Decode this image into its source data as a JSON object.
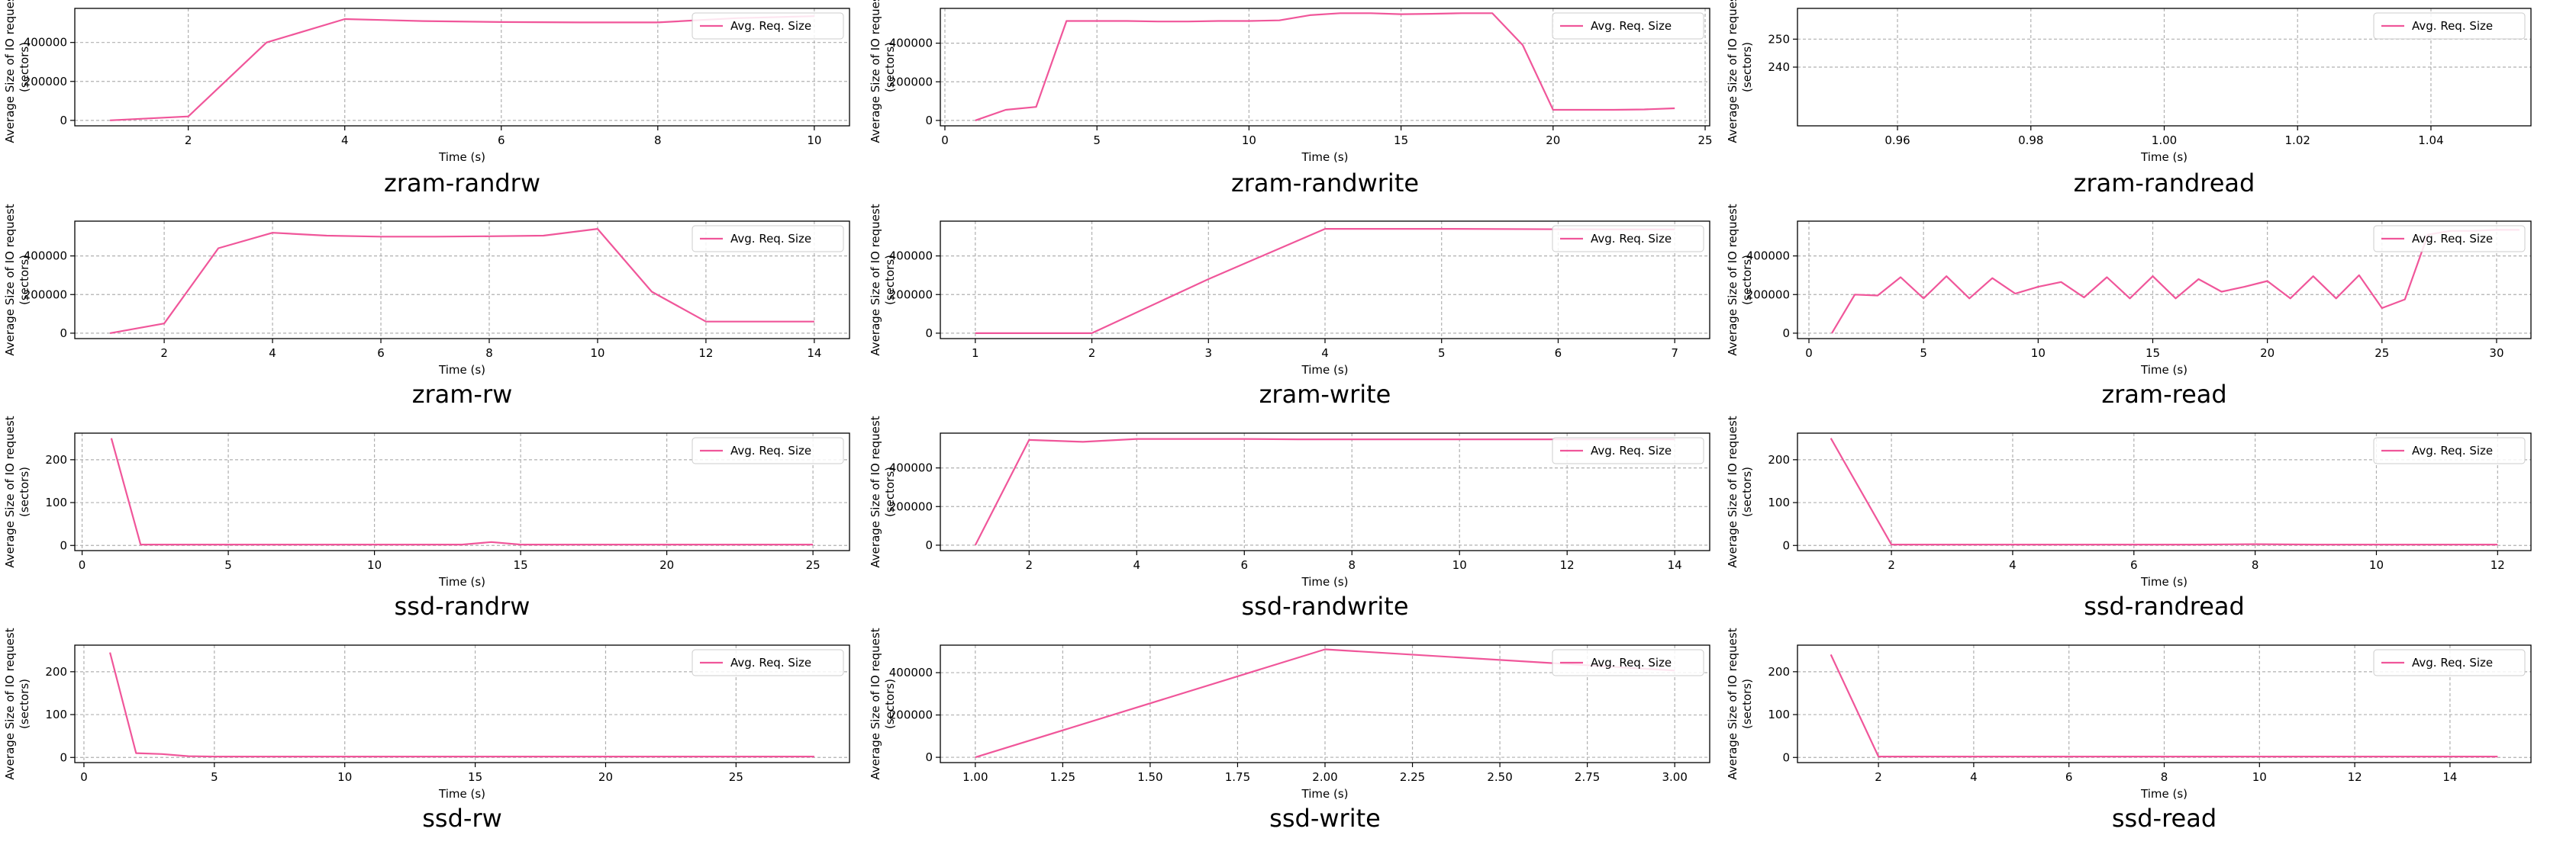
{
  "legend_label": "Avg. Req. Size",
  "common_ylabel_line1": "Average Size of IO request",
  "common_ylabel_line2": "(sectors)",
  "common_xlabel": "Time (s)",
  "colors": {
    "series": "#f0569a",
    "grid": "#b0b0b0",
    "axis": "#000000"
  },
  "chart_data": [
    {
      "type": "line",
      "title": "zram-randrw",
      "xlabel": "Time (s)",
      "ylabel": "Average Size of IO request (sectors)",
      "xlim": [
        0.55,
        10.45
      ],
      "ylim": [
        -28000,
        575000
      ],
      "xticks": [
        2,
        4,
        6,
        8,
        10
      ],
      "yticks": [
        0,
        200000,
        400000
      ],
      "grid": true,
      "legend": "top-right",
      "series": [
        {
          "name": "Avg. Req. Size",
          "x": [
            1,
            2,
            3,
            4,
            5,
            6,
            7,
            8,
            9,
            10
          ],
          "y": [
            0,
            20000,
            400000,
            520000,
            510000,
            505000,
            503000,
            503000,
            525000,
            535000
          ]
        }
      ]
    },
    {
      "type": "line",
      "title": "zram-randwrite",
      "xlabel": "Time (s)",
      "ylabel": "Average Size of IO request (sectors)",
      "xlim": [
        -0.15,
        25.15
      ],
      "ylim": [
        -28000,
        580000
      ],
      "xticks": [
        0,
        5,
        10,
        15,
        20,
        25
      ],
      "yticks": [
        0,
        200000,
        400000
      ],
      "grid": true,
      "legend": "top-right",
      "series": [
        {
          "name": "Avg. Req. Size",
          "x": [
            1,
            2,
            3,
            4,
            5,
            6,
            7,
            8,
            9,
            10,
            11,
            12,
            13,
            14,
            15,
            16,
            17,
            18,
            19,
            20,
            21,
            22,
            23,
            24
          ],
          "y": [
            0,
            55000,
            70000,
            515000,
            515000,
            515000,
            512000,
            512000,
            515000,
            515000,
            518000,
            545000,
            555000,
            555000,
            550000,
            552000,
            555000,
            555000,
            390000,
            55000,
            55000,
            55000,
            57000,
            63000
          ]
        }
      ]
    },
    {
      "type": "line",
      "title": "zram-randread",
      "xlabel": "Time (s)",
      "ylabel": "Average Size of IO request (sectors)",
      "xlim": [
        0.945,
        1.055
      ],
      "ylim": [
        219,
        261
      ],
      "xticks": [
        0.96,
        0.98,
        1.0,
        1.02,
        1.04
      ],
      "xtick_labels": [
        "0.96",
        "0.98",
        "1.00",
        "1.02",
        "1.04"
      ],
      "yticks": [
        240,
        250
      ],
      "grid": true,
      "legend": "top-right",
      "series": [
        {
          "name": "Avg. Req. Size",
          "x": [],
          "y": []
        }
      ]
    },
    {
      "type": "line",
      "title": "zram-rw",
      "xlabel": "Time (s)",
      "ylabel": "Average Size of IO request (sectors)",
      "xlim": [
        0.35,
        14.65
      ],
      "ylim": [
        -28000,
        580000
      ],
      "xticks": [
        2,
        4,
        6,
        8,
        10,
        12,
        14
      ],
      "yticks": [
        0,
        200000,
        400000
      ],
      "grid": true,
      "legend": "top-right",
      "series": [
        {
          "name": "Avg. Req. Size",
          "x": [
            1,
            2,
            3,
            4,
            5,
            6,
            7,
            8,
            9,
            10,
            11,
            12,
            13,
            14
          ],
          "y": [
            0,
            50000,
            440000,
            520000,
            505000,
            500000,
            500000,
            502000,
            505000,
            540000,
            215000,
            60000,
            60000,
            60000
          ]
        }
      ]
    },
    {
      "type": "line",
      "title": "zram-write",
      "xlabel": "Time (s)",
      "ylabel": "Average Size of IO request (sectors)",
      "xlim": [
        0.7,
        7.3
      ],
      "ylim": [
        -28000,
        580000
      ],
      "xticks": [
        1,
        2,
        3,
        4,
        5,
        6,
        7
      ],
      "yticks": [
        0,
        200000,
        400000
      ],
      "grid": true,
      "legend": "top-right",
      "series": [
        {
          "name": "Avg. Req. Size",
          "x": [
            1,
            2,
            3,
            4,
            5,
            6,
            7
          ],
          "y": [
            0,
            0,
            280000,
            540000,
            540000,
            538000,
            537000
          ]
        }
      ]
    },
    {
      "type": "line",
      "title": "zram-read",
      "xlabel": "Time (s)",
      "ylabel": "Average Size of IO request (sectors)",
      "xlim": [
        -0.5,
        31.5
      ],
      "ylim": [
        -28000,
        580000
      ],
      "xticks": [
        0,
        5,
        10,
        15,
        20,
        25,
        30
      ],
      "yticks": [
        0,
        200000,
        400000
      ],
      "grid": true,
      "legend": "top-right",
      "series": [
        {
          "name": "Avg. Req. Size",
          "x": [
            1,
            2,
            3,
            4,
            5,
            6,
            7,
            8,
            9,
            10,
            11,
            12,
            13,
            14,
            15,
            16,
            17,
            18,
            19,
            20,
            21,
            22,
            23,
            24,
            25,
            26,
            27,
            28,
            29,
            30,
            31
          ],
          "y": [
            0,
            200000,
            195000,
            290000,
            180000,
            295000,
            180000,
            285000,
            205000,
            240000,
            265000,
            185000,
            290000,
            180000,
            295000,
            180000,
            280000,
            215000,
            240000,
            270000,
            180000,
            295000,
            180000,
            300000,
            130000,
            175000,
            510000,
            530000,
            530000,
            535000,
            535000
          ]
        }
      ]
    },
    {
      "type": "line",
      "title": "ssd-randrw",
      "xlabel": "Time (s)",
      "ylabel": "Average Size of IO request (sectors)",
      "xlim": [
        -0.25,
        26.25
      ],
      "ylim": [
        -12,
        262
      ],
      "xticks": [
        0,
        5,
        10,
        15,
        20,
        25
      ],
      "yticks": [
        0,
        100,
        200
      ],
      "grid": true,
      "legend": "top-right",
      "series": [
        {
          "name": "Avg. Req. Size",
          "x": [
            1,
            2,
            3,
            4,
            5,
            6,
            7,
            8,
            9,
            10,
            11,
            12,
            13,
            14,
            15,
            16,
            17,
            18,
            19,
            20,
            21,
            22,
            23,
            24,
            25
          ],
          "y": [
            250,
            2,
            2,
            2,
            2,
            2,
            2,
            2,
            2,
            2,
            2,
            2,
            2,
            8,
            2,
            2,
            2,
            2,
            2,
            2,
            2,
            2,
            2,
            2,
            2
          ]
        }
      ]
    },
    {
      "type": "line",
      "title": "ssd-randwrite",
      "xlabel": "Time (s)",
      "ylabel": "Average Size of IO request (sectors)",
      "xlim": [
        0.35,
        14.65
      ],
      "ylim": [
        -28000,
        580000
      ],
      "xticks": [
        2,
        4,
        6,
        8,
        10,
        12,
        14
      ],
      "yticks": [
        0,
        200000,
        400000
      ],
      "grid": true,
      "legend": "top-right",
      "series": [
        {
          "name": "Avg. Req. Size",
          "x": [
            1,
            2,
            3,
            4,
            5,
            6,
            7,
            8,
            9,
            10,
            11,
            12,
            13,
            14
          ],
          "y": [
            0,
            545000,
            535000,
            550000,
            550000,
            550000,
            548000,
            548000,
            548000,
            548000,
            548000,
            548000,
            548000,
            548000
          ]
        }
      ]
    },
    {
      "type": "line",
      "title": "ssd-randread",
      "xlabel": "Time (s)",
      "ylabel": "Average Size of IO request (sectors)",
      "xlim": [
        0.45,
        12.55
      ],
      "ylim": [
        -12,
        262
      ],
      "xticks": [
        2,
        4,
        6,
        8,
        10,
        12
      ],
      "yticks": [
        0,
        100,
        200
      ],
      "grid": true,
      "legend": "top-right",
      "series": [
        {
          "name": "Avg. Req. Size",
          "x": [
            1,
            2,
            3,
            4,
            5,
            6,
            7,
            8,
            9,
            10,
            11,
            12
          ],
          "y": [
            250,
            2,
            2,
            2,
            2,
            2,
            2,
            3,
            2,
            2,
            2,
            2
          ]
        }
      ]
    },
    {
      "type": "line",
      "title": "ssd-rw",
      "xlabel": "Time (s)",
      "ylabel": "Average Size of IO request (sectors)",
      "xlim": [
        -0.35,
        29.35
      ],
      "ylim": [
        -12,
        262
      ],
      "xticks": [
        0,
        5,
        10,
        15,
        20,
        25
      ],
      "yticks": [
        0,
        100,
        200
      ],
      "grid": true,
      "legend": "top-right",
      "series": [
        {
          "name": "Avg. Req. Size",
          "x": [
            1,
            2,
            3,
            4,
            5,
            6,
            7,
            8,
            9,
            10,
            11,
            12,
            13,
            14,
            15,
            16,
            17,
            18,
            19,
            20,
            21,
            22,
            23,
            24,
            25,
            26,
            27,
            28
          ],
          "y": [
            245,
            10,
            8,
            3,
            2,
            2,
            2,
            2,
            2,
            2,
            2,
            2,
            2,
            2,
            2,
            2,
            2,
            2,
            2,
            2,
            2,
            2,
            2,
            2,
            2,
            2,
            2,
            2
          ]
        }
      ]
    },
    {
      "type": "line",
      "title": "ssd-write",
      "xlabel": "Time (s)",
      "ylabel": "Average Size of IO request (sectors)",
      "xlim": [
        0.9,
        3.1
      ],
      "ylim": [
        -25000,
        530000
      ],
      "xticks": [
        1.0,
        1.25,
        1.5,
        1.75,
        2.0,
        2.25,
        2.5,
        2.75,
        3.0
      ],
      "xtick_labels": [
        "1.00",
        "1.25",
        "1.50",
        "1.75",
        "2.00",
        "2.25",
        "2.50",
        "2.75",
        "3.00"
      ],
      "yticks": [
        0,
        200000,
        400000
      ],
      "grid": true,
      "legend": "top-right",
      "series": [
        {
          "name": "Avg. Req. Size",
          "x": [
            1,
            2,
            3
          ],
          "y": [
            0,
            510000,
            410000
          ]
        }
      ]
    },
    {
      "type": "line",
      "title": "ssd-read",
      "xlabel": "Time (s)",
      "ylabel": "Average Size of IO request (sectors)",
      "xlim": [
        0.3,
        15.7
      ],
      "ylim": [
        -12,
        262
      ],
      "xticks": [
        2,
        4,
        6,
        8,
        10,
        12,
        14
      ],
      "yticks": [
        0,
        100,
        200
      ],
      "grid": true,
      "legend": "top-right",
      "series": [
        {
          "name": "Avg. Req. Size",
          "x": [
            1,
            2,
            3,
            4,
            5,
            6,
            7,
            8,
            9,
            10,
            11,
            12,
            13,
            14,
            15
          ],
          "y": [
            240,
            2,
            2,
            2,
            2,
            2,
            2,
            2,
            2,
            2,
            2,
            2,
            2,
            2,
            2
          ]
        }
      ]
    }
  ]
}
